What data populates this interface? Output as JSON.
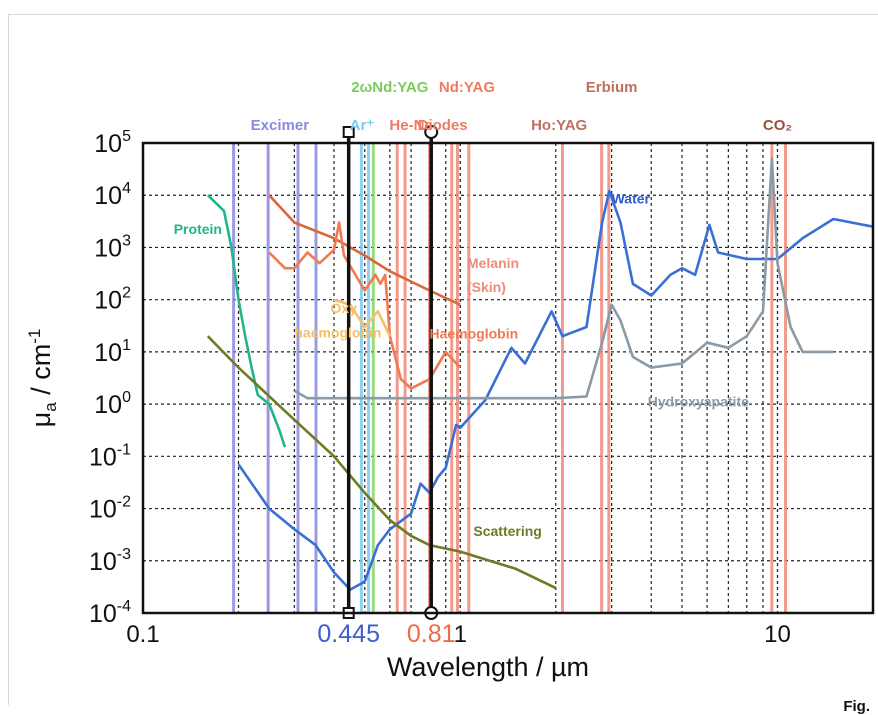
{
  "figure_label": "Fig.",
  "chart_data": {
    "type": "line",
    "xscale": "log",
    "yscale": "log",
    "xlim": [
      0.1,
      20
    ],
    "ylim": [
      0.0001,
      100000
    ],
    "xlabel": "Wavelength / µm",
    "ylabel_base": "μ",
    "ylabel_sub": "a",
    "ylabel_rest": " / cm",
    "ylabel_sup": "-1",
    "x_ticks": [
      {
        "value": 0.1,
        "label": "0.1"
      },
      {
        "value": 1,
        "label": "1"
      },
      {
        "value": 10,
        "label": "10"
      }
    ],
    "y_ticks": [
      {
        "value": 100000,
        "exp": "5"
      },
      {
        "value": 10000,
        "exp": "4"
      },
      {
        "value": 1000,
        "exp": "3"
      },
      {
        "value": 100,
        "exp": "2"
      },
      {
        "value": 10,
        "exp": "1"
      },
      {
        "value": 1,
        "exp": "0"
      },
      {
        "value": 0.1,
        "exp": "-1"
      },
      {
        "value": 0.01,
        "exp": "-2"
      },
      {
        "value": 0.001,
        "exp": "-3"
      },
      {
        "value": 0.0001,
        "exp": "-4"
      }
    ],
    "tick_base": "10",
    "grid": true,
    "highlighted_wavelengths": [
      {
        "value": 0.445,
        "label": "0.445",
        "color": "#3a5fd0"
      },
      {
        "value": 0.81,
        "label": "0.81",
        "color": "#f06a4a"
      }
    ],
    "laser_lines": [
      {
        "x": 0.193,
        "color": "#8a8ae0"
      },
      {
        "x": 0.248,
        "color": "#8a8ae0"
      },
      {
        "x": 0.308,
        "color": "#8a8ae0"
      },
      {
        "x": 0.351,
        "color": "#8a8ae0"
      },
      {
        "x": 0.488,
        "color": "#7ac8ee"
      },
      {
        "x": 0.514,
        "color": "#7ac8ee"
      },
      {
        "x": 0.532,
        "color": "#8ad46a"
      },
      {
        "x": 0.633,
        "color": "#f08a7a"
      },
      {
        "x": 0.67,
        "color": "#f08a7a"
      },
      {
        "x": 0.8,
        "color": "#f08a7a"
      },
      {
        "x": 0.94,
        "color": "#f08a7a"
      },
      {
        "x": 0.98,
        "color": "#f08a7a"
      },
      {
        "x": 1.064,
        "color": "#f08a7a"
      },
      {
        "x": 2.1,
        "color": "#f08a7a"
      },
      {
        "x": 2.79,
        "color": "#f08a7a"
      },
      {
        "x": 2.94,
        "color": "#f08a7a"
      },
      {
        "x": 9.6,
        "color": "#f08a7a"
      },
      {
        "x": 10.6,
        "color": "#f08a7a"
      }
    ],
    "dotted_grid_x": [
      0.2,
      0.3,
      0.4,
      0.5,
      0.6,
      0.7,
      0.8,
      0.9,
      2,
      3,
      4,
      5,
      6,
      7,
      8,
      9
    ],
    "laser_labels": [
      {
        "text": "Excimer",
        "x": 0.27,
        "row": 2,
        "color": "#8a8ae0"
      },
      {
        "text": "Ar⁺",
        "x": 0.49,
        "row": 2,
        "color": "#7ac8ee"
      },
      {
        "text": "2ωNd:YAG",
        "x": 0.6,
        "row": 1,
        "color": "#7acc5a"
      },
      {
        "text": "Nd:YAG",
        "x": 1.05,
        "row": 1,
        "color": "#f07a62"
      },
      {
        "text": "He-Ne",
        "x": 0.7,
        "row": 2,
        "color": "#f07a62"
      },
      {
        "text": "Diodes",
        "x": 0.88,
        "row": 2,
        "color": "#f07a62"
      },
      {
        "text": "Ho:YAG",
        "x": 2.05,
        "row": 2,
        "color": "#c07060"
      },
      {
        "text": "Erbium",
        "x": 3.0,
        "row": 1,
        "color": "#c07060"
      },
      {
        "text": "CO₂",
        "x": 10.0,
        "row": 2,
        "color": "#9a5040"
      }
    ],
    "series": [
      {
        "name": "Water",
        "color": "#3a6fd4",
        "points": [
          [
            0.2,
            0.07
          ],
          [
            0.25,
            0.01
          ],
          [
            0.3,
            0.004
          ],
          [
            0.35,
            0.002
          ],
          [
            0.4,
            0.0006
          ],
          [
            0.45,
            0.00028
          ],
          [
            0.5,
            0.0004
          ],
          [
            0.55,
            0.002
          ],
          [
            0.6,
            0.004
          ],
          [
            0.7,
            0.008
          ],
          [
            0.75,
            0.03
          ],
          [
            0.8,
            0.02
          ],
          [
            0.85,
            0.04
          ],
          [
            0.9,
            0.06
          ],
          [
            0.97,
            0.4
          ],
          [
            1.0,
            0.35
          ],
          [
            1.2,
            1.2
          ],
          [
            1.45,
            12
          ],
          [
            1.6,
            6
          ],
          [
            1.94,
            60
          ],
          [
            2.1,
            20
          ],
          [
            2.5,
            30
          ],
          [
            2.8,
            3000
          ],
          [
            2.95,
            12000
          ],
          [
            3.2,
            3000
          ],
          [
            3.5,
            200
          ],
          [
            4.0,
            120
          ],
          [
            4.6,
            300
          ],
          [
            5.0,
            400
          ],
          [
            5.5,
            300
          ],
          [
            6.1,
            2700
          ],
          [
            6.5,
            800
          ],
          [
            8.0,
            600
          ],
          [
            10.0,
            600
          ],
          [
            12.0,
            1500
          ],
          [
            15.0,
            3500
          ],
          [
            20.0,
            2500
          ]
        ]
      },
      {
        "name": "Hydroxyapatite",
        "color": "#8a9aa6",
        "points": [
          [
            0.3,
            1.8
          ],
          [
            0.33,
            1.3
          ],
          [
            0.4,
            1.3
          ],
          [
            1.0,
            1.3
          ],
          [
            2.0,
            1.3
          ],
          [
            2.5,
            1.4
          ],
          [
            2.8,
            15
          ],
          [
            3.0,
            80
          ],
          [
            3.2,
            40
          ],
          [
            3.5,
            8
          ],
          [
            4.0,
            5
          ],
          [
            5.0,
            6
          ],
          [
            6.0,
            15
          ],
          [
            7.0,
            12
          ],
          [
            8.0,
            20
          ],
          [
            9.0,
            60
          ],
          [
            9.6,
            50000
          ],
          [
            10.0,
            500
          ],
          [
            11.0,
            30
          ],
          [
            12.0,
            10
          ],
          [
            15.0,
            10
          ]
        ]
      },
      {
        "name": "Protein",
        "color": "#23b488",
        "points": [
          [
            0.16,
            10000
          ],
          [
            0.18,
            5000
          ],
          [
            0.19,
            1000
          ],
          [
            0.2,
            100
          ],
          [
            0.21,
            20
          ],
          [
            0.22,
            5
          ],
          [
            0.23,
            1.5
          ],
          [
            0.25,
            1
          ],
          [
            0.27,
            0.3
          ],
          [
            0.28,
            0.15
          ]
        ]
      },
      {
        "name": "Scattering",
        "color": "#6e7a24",
        "points": [
          [
            0.16,
            20
          ],
          [
            0.2,
            5
          ],
          [
            0.3,
            0.5
          ],
          [
            0.4,
            0.1
          ],
          [
            0.5,
            0.02
          ],
          [
            0.6,
            0.006
          ],
          [
            0.7,
            0.003
          ],
          [
            0.8,
            0.002
          ],
          [
            1.0,
            0.0015
          ],
          [
            1.5,
            0.0007
          ],
          [
            2.0,
            0.0003
          ]
        ]
      },
      {
        "name": "Melanin (Skin)",
        "color": "#d8683c",
        "points": [
          [
            0.25,
            10000
          ],
          [
            0.3,
            3000
          ],
          [
            0.4,
            1500
          ],
          [
            0.5,
            700
          ],
          [
            0.6,
            350
          ],
          [
            0.8,
            150
          ],
          [
            1.0,
            80
          ]
        ]
      },
      {
        "name": "Haemoglobin",
        "color": "#f07a52",
        "points": [
          [
            0.25,
            800
          ],
          [
            0.28,
            400
          ],
          [
            0.3,
            400
          ],
          [
            0.33,
            800
          ],
          [
            0.36,
            500
          ],
          [
            0.4,
            900
          ],
          [
            0.415,
            3000
          ],
          [
            0.43,
            700
          ],
          [
            0.5,
            150
          ],
          [
            0.54,
            300
          ],
          [
            0.56,
            200
          ],
          [
            0.58,
            300
          ],
          [
            0.6,
            20
          ],
          [
            0.65,
            3
          ],
          [
            0.7,
            2
          ],
          [
            0.8,
            3
          ],
          [
            0.9,
            10
          ],
          [
            1.0,
            5
          ]
        ]
      },
      {
        "name": "Oxy haemoglobin",
        "color": "#f5c06a",
        "points": [
          [
            0.4,
            100
          ],
          [
            0.45,
            80
          ],
          [
            0.5,
            30
          ],
          [
            0.55,
            60
          ],
          [
            0.6,
            20
          ]
        ]
      }
    ],
    "series_labels": [
      {
        "text": "Water",
        "x": 3.0,
        "y": 7000,
        "color": "#2c5dc8"
      },
      {
        "text": "Protein",
        "x": 0.125,
        "y": 1800,
        "color": "#23b488"
      },
      {
        "text": "Melanin",
        "x": 1.05,
        "y": 400,
        "color": "#f08a7a"
      },
      {
        "text": "(Skin)",
        "x": 1.05,
        "y": 140,
        "color": "#f08a7a"
      },
      {
        "text": "Oxy",
        "x": 0.39,
        "y": 55,
        "color": "#f5c06a"
      },
      {
        "text": "haemoglobin",
        "x": 0.3,
        "y": 19,
        "color": "#f5c06a"
      },
      {
        "text": "Haemoglobin",
        "x": 0.8,
        "y": 18,
        "color": "#f07a52"
      },
      {
        "text": "Hydroxyapatite",
        "x": 3.9,
        "y": 0.9,
        "color": "#8a9aa6"
      },
      {
        "text": "Scattering",
        "x": 1.1,
        "y": 0.003,
        "color": "#6e7a24"
      }
    ]
  }
}
